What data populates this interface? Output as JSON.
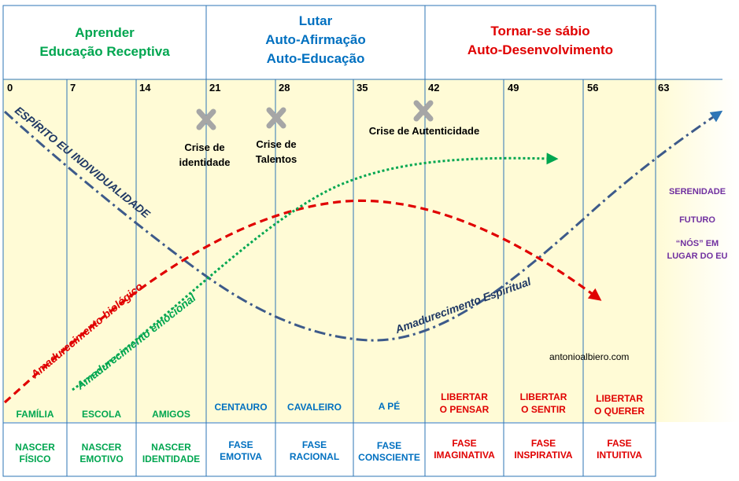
{
  "headers": [
    {
      "title": "Aprender",
      "subtitle1": "Educação Receptiva",
      "subtitle2": "",
      "color": "#00a650"
    },
    {
      "title": "Lutar",
      "subtitle1": "Auto-Afirmação",
      "subtitle2": "Auto-Educação",
      "color": "#0070c0"
    },
    {
      "title": "Tornar-se sábio",
      "subtitle1": "Auto-Desenvolvimento",
      "subtitle2": "",
      "color": "#e00000"
    }
  ],
  "ages": [
    "0",
    "7",
    "14",
    "21",
    "28",
    "35",
    "42",
    "49",
    "56",
    "63"
  ],
  "crises": [
    {
      "text": "Crise de identidade",
      "line1": "Crise de",
      "line2": "identidade"
    },
    {
      "text": "Crise de Talentos",
      "line1": "Crise de",
      "line2": "Talentos"
    },
    {
      "text": "Crise de Autenticidade",
      "line1": "Crise de Autenticidade",
      "line2": ""
    }
  ],
  "curve_labels": {
    "spirit_individuality": "ESPÍRITO EU INDIVIDUALIDADE",
    "biological": "Amadurecimento biológico",
    "emotional": "Amadurecimento emocional",
    "spiritual": "Amadurecimento Espiritual"
  },
  "bottom_labels": [
    {
      "text": "FAMÍLIA",
      "line1": "FAMÍLIA",
      "line2": "",
      "color": "#00a650"
    },
    {
      "text": "ESCOLA",
      "line1": "ESCOLA",
      "line2": "",
      "color": "#00a650"
    },
    {
      "text": "AMIGOS",
      "line1": "AMIGOS",
      "line2": "",
      "color": "#00a650"
    },
    {
      "text": "CENTAURO",
      "line1": "CENTAURO",
      "line2": "",
      "color": "#0070c0"
    },
    {
      "text": "CAVALEIRO",
      "line1": "CAVALEIRO",
      "line2": "",
      "color": "#0070c0"
    },
    {
      "text": "A PÉ",
      "line1": "A PÉ",
      "line2": "",
      "color": "#0070c0"
    },
    {
      "text": "LIBERTAR O PENSAR",
      "line1": "LIBERTAR",
      "line2": "O PENSAR",
      "color": "#e00000"
    },
    {
      "text": "LIBERTAR O SENTIR",
      "line1": "LIBERTAR",
      "line2": "O SENTIR",
      "color": "#e00000"
    },
    {
      "text": "LIBERTAR O QUERER",
      "line1": "LIBERTAR",
      "line2": "O QUERER",
      "color": "#e00000"
    }
  ],
  "phases": [
    {
      "line1": "NASCER",
      "line2": "FÍSICO",
      "color": "#00a650"
    },
    {
      "line1": "NASCER",
      "line2": "EMOTIVO",
      "color": "#00a650"
    },
    {
      "line1": "NASCER",
      "line2": "IDENTIDADE",
      "color": "#00a650"
    },
    {
      "line1": "FASE",
      "line2": "EMOTIVA",
      "color": "#0070c0"
    },
    {
      "line1": "FASE",
      "line2": "RACIONAL",
      "color": "#0070c0"
    },
    {
      "line1": "FASE",
      "line2": "CONSCIENTE",
      "color": "#0070c0"
    },
    {
      "line1": "FASE",
      "line2": "IMAGINATIVA",
      "color": "#e00000"
    },
    {
      "line1": "FASE",
      "line2": "INSPIRATIVA",
      "color": "#e00000"
    },
    {
      "line1": "FASE",
      "line2": "INTUITIVA",
      "color": "#e00000"
    }
  ],
  "side_labels": [
    "SERENIDADE",
    "FUTURO",
    "“NÓS” EM",
    "LUGAR DO EU"
  ],
  "watermark": "antonioalbiero.com",
  "colors": {
    "green": "#00a650",
    "blue": "#0070c0",
    "red": "#e00000",
    "purple": "#7030a0",
    "spirit_line": "#3d5a8a",
    "background": "#fffbd6",
    "grid": "#2e75b6",
    "cross": "#a6a6a6"
  }
}
